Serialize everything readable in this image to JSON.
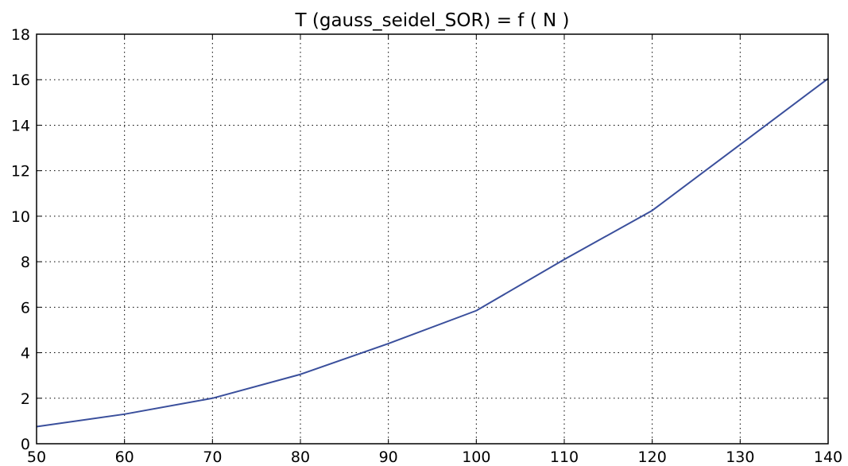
{
  "chart_data": {
    "type": "line",
    "title": "T (gauss_seidel_SOR) = f ( N )",
    "xlabel": "",
    "ylabel": "",
    "xlim": [
      50,
      140
    ],
    "ylim": [
      0,
      18
    ],
    "x_ticks": [
      50,
      60,
      70,
      80,
      90,
      100,
      110,
      120,
      130,
      140
    ],
    "y_ticks": [
      0,
      2,
      4,
      6,
      8,
      10,
      12,
      14,
      16,
      18
    ],
    "grid": true,
    "legend": "none",
    "series": [
      {
        "color": "#3a4f9c",
        "x": [
          50,
          60,
          70,
          80,
          90,
          100,
          110,
          120,
          130,
          140
        ],
        "values": [
          0.75,
          1.3,
          2.0,
          3.05,
          4.4,
          5.85,
          8.1,
          10.25,
          13.15,
          16.05
        ]
      }
    ]
  }
}
